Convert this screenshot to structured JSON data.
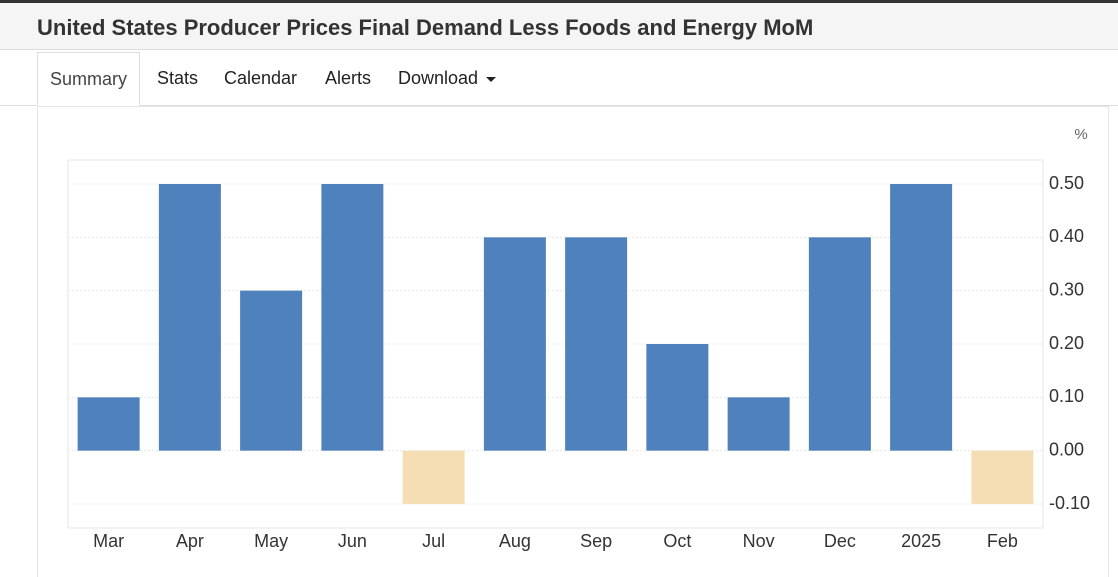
{
  "header": {
    "title": "United States Producer Prices Final Demand Less Foods and Energy MoM"
  },
  "tabs": [
    "Summary",
    "Stats",
    "Calendar",
    "Alerts",
    "Download"
  ],
  "chart_data": {
    "type": "bar",
    "unit": "%",
    "categories": [
      "Mar",
      "Apr",
      "May",
      "Jun",
      "Jul",
      "Aug",
      "Sep",
      "Oct",
      "Nov",
      "Dec",
      "2025",
      "Feb"
    ],
    "values": [
      0.1,
      0.5,
      0.3,
      0.5,
      -0.1,
      0.4,
      0.4,
      0.2,
      0.1,
      0.4,
      0.5,
      -0.1
    ],
    "color": "#4f81bd",
    "negative_color": "#f5deb3",
    "ylim": [
      -0.145,
      0.545
    ],
    "yticks": [
      {
        "value": -0.1,
        "label": "-0.10"
      },
      {
        "value": 0,
        "label": "0.00"
      },
      {
        "value": 0.1,
        "label": "0.10"
      },
      {
        "value": 0.2,
        "label": "0.20"
      },
      {
        "value": 0.3,
        "label": "0.30"
      },
      {
        "value": 0.4,
        "label": "0.40"
      },
      {
        "value": 0.5,
        "label": "0.50"
      }
    ],
    "grid": true
  }
}
